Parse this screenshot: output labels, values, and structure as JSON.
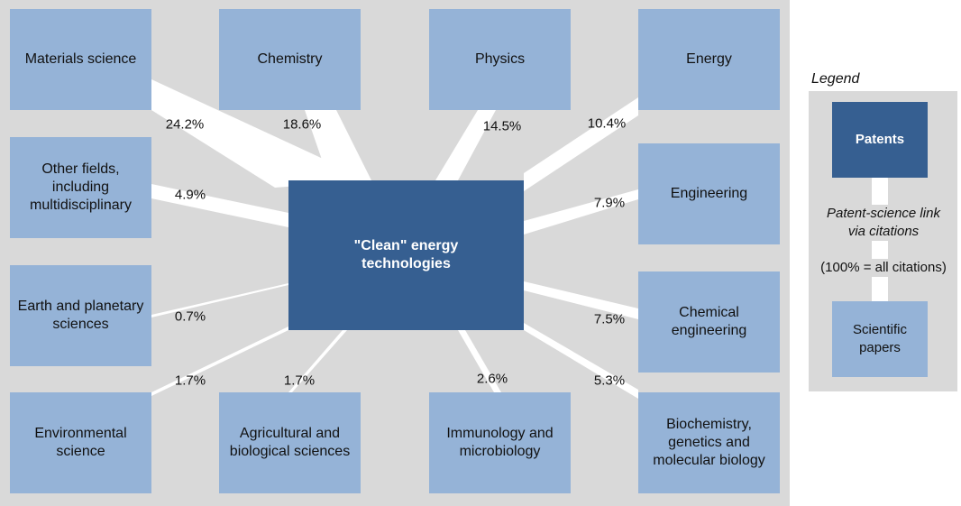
{
  "hub": {
    "label": "\"Clean\" energy technologies"
  },
  "fields": [
    {
      "id": "materials-science",
      "label": "Materials science",
      "share": "24.2%"
    },
    {
      "id": "chemistry",
      "label": "Chemistry",
      "share": "18.6%"
    },
    {
      "id": "physics",
      "label": "Physics",
      "share": "14.5%"
    },
    {
      "id": "energy",
      "label": "Energy",
      "share": "10.4%"
    },
    {
      "id": "other-fields",
      "label": "Other fields, including multidisciplinary",
      "share": "4.9%"
    },
    {
      "id": "engineering",
      "label": "Engineering",
      "share": "7.9%"
    },
    {
      "id": "earth-planetary",
      "label": "Earth and planetary sciences",
      "share": "0.7%"
    },
    {
      "id": "chemical-engineering",
      "label": "Chemical engineering",
      "share": "7.5%"
    },
    {
      "id": "environmental-science",
      "label": "Environmental science",
      "share": "1.7%"
    },
    {
      "id": "agricultural-biological",
      "label": "Agricultural and biological sciences",
      "share": "1.7%"
    },
    {
      "id": "immunology-microbiology",
      "label": "Immunology and microbiology",
      "share": "2.6%"
    },
    {
      "id": "biochemistry",
      "label": "Biochemistry, genetics and molecular biology",
      "share": "5.3%"
    }
  ],
  "legend": {
    "title": "Legend",
    "patents": "Patents",
    "papers": "Scientific papers",
    "link_line1": "Patent-science link",
    "link_line2": "via citations",
    "note": "(100% = all citations)"
  },
  "colors": {
    "panel": "#d9d9d9",
    "field_box": "#95b3d7",
    "hub_box": "#365f91",
    "link": "#ffffff"
  }
}
